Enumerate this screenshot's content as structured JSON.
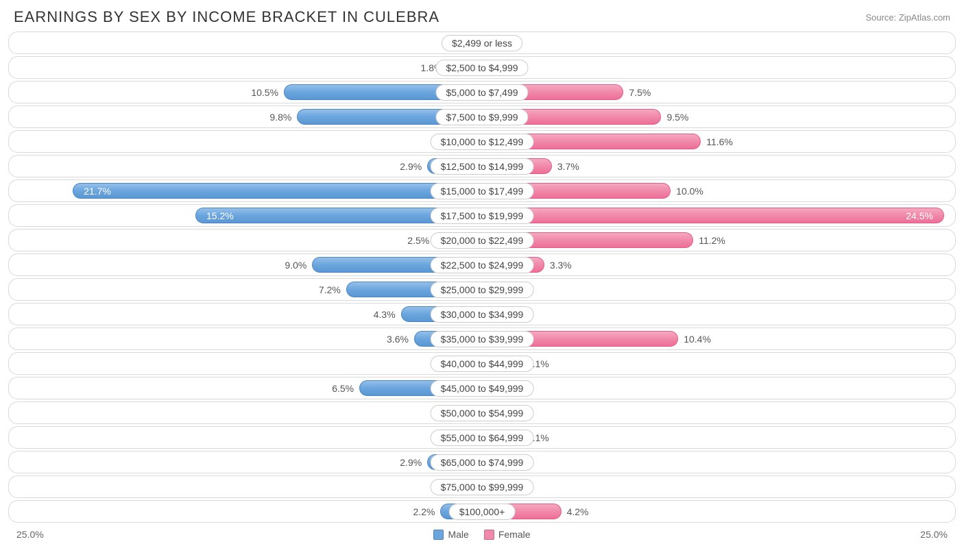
{
  "title": "EARNINGS BY SEX BY INCOME BRACKET IN CULEBRA",
  "source": "Source: ZipAtlas.com",
  "axis_max": 25.0,
  "axis_label_left": "25.0%",
  "axis_label_right": "25.0%",
  "min_bar_pct": 2.3,
  "legend": [
    {
      "label": "Male",
      "color": "#6ba5dd"
    },
    {
      "label": "Female",
      "color": "#f089aa"
    }
  ],
  "colors": {
    "male_grad_top": "#94bfeb",
    "male_grad_bot": "#5b97d3",
    "male_border": "#4a86c5",
    "female_grad_top": "#f7a8c0",
    "female_grad_bot": "#ed6f97",
    "female_border": "#e55a87",
    "row_border": "#d9d9d9",
    "text": "#555555",
    "bg": "#ffffff"
  },
  "rows": [
    {
      "category": "$2,499 or less",
      "male": 0.0,
      "female": 0.0
    },
    {
      "category": "$2,500 to $4,999",
      "male": 1.8,
      "female": 0.0
    },
    {
      "category": "$5,000 to $7,499",
      "male": 10.5,
      "female": 7.5
    },
    {
      "category": "$7,500 to $9,999",
      "male": 9.8,
      "female": 9.5
    },
    {
      "category": "$10,000 to $12,499",
      "male": 0.0,
      "female": 11.6
    },
    {
      "category": "$12,500 to $14,999",
      "male": 2.9,
      "female": 3.7
    },
    {
      "category": "$15,000 to $17,499",
      "male": 21.7,
      "female": 10.0
    },
    {
      "category": "$17,500 to $19,999",
      "male": 15.2,
      "female": 24.5
    },
    {
      "category": "$20,000 to $22,499",
      "male": 2.5,
      "female": 11.2
    },
    {
      "category": "$22,500 to $24,999",
      "male": 9.0,
      "female": 3.3
    },
    {
      "category": "$25,000 to $29,999",
      "male": 7.2,
      "female": 0.0
    },
    {
      "category": "$30,000 to $34,999",
      "male": 4.3,
      "female": 0.0
    },
    {
      "category": "$35,000 to $39,999",
      "male": 3.6,
      "female": 10.4
    },
    {
      "category": "$40,000 to $44,999",
      "male": 0.0,
      "female": 2.1
    },
    {
      "category": "$45,000 to $49,999",
      "male": 6.5,
      "female": 0.0
    },
    {
      "category": "$50,000 to $54,999",
      "male": 0.0,
      "female": 0.0
    },
    {
      "category": "$55,000 to $64,999",
      "male": 0.0,
      "female": 2.1
    },
    {
      "category": "$65,000 to $74,999",
      "male": 2.9,
      "female": 0.0
    },
    {
      "category": "$75,000 to $99,999",
      "male": 0.0,
      "female": 0.0
    },
    {
      "category": "$100,000+",
      "male": 2.2,
      "female": 4.2
    }
  ]
}
